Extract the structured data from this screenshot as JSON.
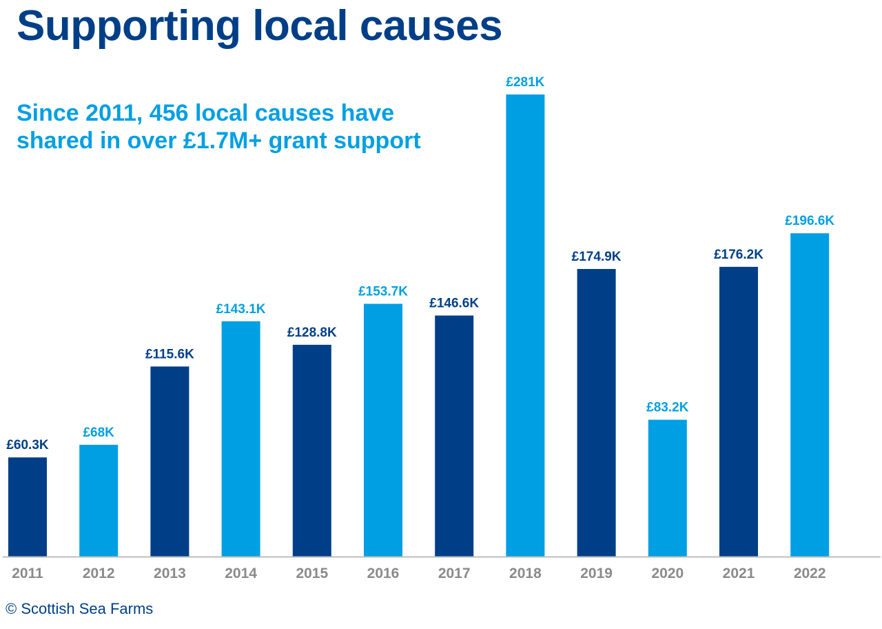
{
  "header": {
    "title": "Supporting local causes",
    "subtitle_line1": "Since 2011, 456 local causes have",
    "subtitle_line2": "shared in over £1.7M+ grant support"
  },
  "footer": {
    "copyright": "© Scottish Sea Farms"
  },
  "colors": {
    "dark_bar": "#003f87",
    "light_bar": "#009fe3",
    "axis_label": "#8a8a8a",
    "axis_line": "#bdbdbd"
  },
  "chart_data": {
    "type": "bar",
    "categories": [
      "2011",
      "2012",
      "2013",
      "2014",
      "2015",
      "2016",
      "2017",
      "2018",
      "2019",
      "2020",
      "2021",
      "2022"
    ],
    "values": [
      60.3,
      68,
      115.6,
      143.1,
      128.8,
      153.7,
      146.6,
      281,
      174.9,
      83.2,
      176.2,
      196.6
    ],
    "data_labels": [
      "£60.3K",
      "£68K",
      "£115.6K",
      "£143.1K",
      "£128.8K",
      "£153.7K",
      "£146.6K",
      "£281K",
      "£174.9K",
      "£83.2K",
      "£176.2K",
      "£196.6K"
    ],
    "bar_colors": [
      "#003f87",
      "#009fe3",
      "#003f87",
      "#009fe3",
      "#003f87",
      "#009fe3",
      "#003f87",
      "#009fe3",
      "#003f87",
      "#009fe3",
      "#003f87",
      "#009fe3"
    ],
    "unit": "£K",
    "xlabel": "",
    "ylabel": "",
    "ylim": [
      0,
      281
    ],
    "grid": false,
    "legend": "none"
  }
}
